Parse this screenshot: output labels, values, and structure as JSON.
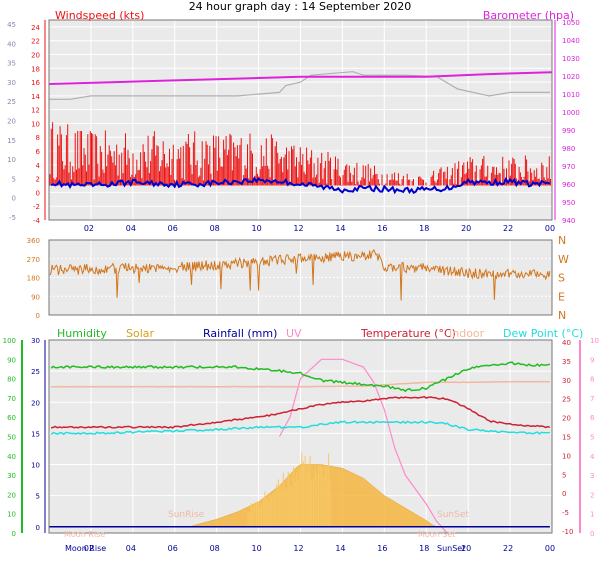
{
  "title": "24 hour graph day : 14 September 2020",
  "colors": {
    "wind_gust": "#ee1111",
    "wind_avg": "#0000cc",
    "barometer": "#dd22dd",
    "bar_gray": "#b0b0b0",
    "direction": "#d2761e",
    "humidity": "#22bb22",
    "solar": "#f5b640",
    "solar_legend": "#d4a017",
    "rainfall": "#000099",
    "uv": "#ff88cc",
    "temperature": "#cc2233",
    "indoor": "#f2b8a0",
    "dewpoint": "#22dddd",
    "plot_bg": "#eaeaea"
  },
  "chart_data": [
    {
      "type": "line",
      "id": "wind-barometer",
      "left_axis_label": "Windspeed (kts)",
      "right_axis_label": "Barometer (hpa)",
      "left_ticks": [
        "24",
        "22",
        "20",
        "18",
        "16",
        "14",
        "12",
        "10",
        "8",
        "6",
        "4",
        "2",
        "0",
        "-2",
        "-4"
      ],
      "outer_left_ticks": [
        "45",
        "40",
        "35",
        "30",
        "25",
        "20",
        "15",
        "10",
        "5",
        "0",
        "-5"
      ],
      "right_ticks": [
        "1050",
        "1040",
        "1030",
        "1020",
        "1010",
        "1000",
        "990",
        "980",
        "970",
        "960",
        "950",
        "940"
      ],
      "x_ticks": [
        "02",
        "04",
        "06",
        "08",
        "10",
        "12",
        "14",
        "16",
        "18",
        "20",
        "22",
        "00"
      ],
      "ylim_left": [
        -4,
        25
      ],
      "ylim_right": [
        940,
        1051
      ],
      "barometer_hpa": {
        "x": [
          0,
          3,
          6,
          9,
          12,
          15,
          18,
          21,
          24
        ],
        "y": [
          1015.5,
          1016.5,
          1017.5,
          1018.5,
          1019.5,
          1019.5,
          1019.5,
          1021,
          1022
        ]
      },
      "gray_line": {
        "x": [
          0,
          1,
          2,
          6,
          9,
          11,
          11.3,
          12,
          12.5,
          14.5,
          15,
          17,
          18.5,
          19.5,
          21,
          22,
          23.9
        ],
        "y": [
          13.5,
          13.5,
          14,
          14,
          14,
          14.5,
          15.5,
          16,
          17,
          17.5,
          17,
          17,
          16.8,
          15,
          14,
          14.5,
          14.5
        ]
      },
      "wind_gust_kts": {
        "x": [
          0,
          2,
          4,
          6,
          8,
          10,
          12,
          14,
          16,
          18,
          20,
          22,
          23.9
        ],
        "y": [
          6,
          5,
          5,
          5,
          5,
          5,
          4,
          3,
          2,
          1.5,
          3,
          3,
          3
        ]
      },
      "wind_avg_kts": {
        "x": [
          0,
          1,
          2,
          3,
          4,
          5,
          6,
          7,
          8,
          9,
          10,
          11,
          12,
          13,
          14,
          15,
          16,
          17,
          18,
          19,
          20,
          21,
          22,
          23,
          23.9
        ],
        "y": [
          1.5,
          1,
          1,
          1.2,
          1.5,
          1.3,
          1.2,
          1.2,
          1.4,
          1.6,
          1.8,
          1.6,
          1.2,
          0.8,
          0.4,
          0.6,
          0.5,
          0.3,
          0.4,
          0.6,
          1.6,
          1.4,
          1.6,
          1.2,
          1.4
        ]
      }
    },
    {
      "type": "scatter",
      "id": "wind-direction",
      "left_ticks": [
        "360",
        "270",
        "180",
        "90",
        "0"
      ],
      "right_ticks": [
        "N",
        "W",
        "S",
        "E",
        "N"
      ],
      "ylim": [
        0,
        360
      ],
      "direction_deg": {
        "x": [
          0,
          2,
          4,
          6,
          8,
          10,
          12,
          14,
          15.6,
          16,
          18,
          20,
          22,
          23.9
        ],
        "y": [
          215,
          220,
          225,
          230,
          240,
          255,
          270,
          280,
          290,
          230,
          225,
          200,
          195,
          195
        ]
      }
    },
    {
      "type": "line",
      "id": "temperature-solar",
      "legend": [
        "Humidity",
        "Solar",
        "Rainfall (mm)",
        "UV",
        "Temperature (°C)",
        "Indoor",
        "Dew Point (°C)"
      ],
      "humidity_ticks": [
        "100",
        "90",
        "80",
        "70",
        "60",
        "50",
        "40",
        "30",
        "20",
        "10",
        "0"
      ],
      "temperature_ticks": [
        "30",
        "25",
        "20",
        "15",
        "10",
        "5",
        "0"
      ],
      "right_temp_ticks": [
        "40",
        "35",
        "30",
        "25",
        "20",
        "15",
        "10",
        "5",
        "0",
        "-5",
        "-10"
      ],
      "uv_ticks": [
        "10",
        "9",
        "8",
        "7",
        "6",
        "5",
        "4",
        "3",
        "2",
        "1",
        "0"
      ],
      "x_ticks": [
        "02",
        "04",
        "06",
        "08",
        "10",
        "12",
        "14",
        "16",
        "18",
        "20",
        "22",
        "00"
      ],
      "annotations": [
        "Moon Rise",
        "Moon Rise",
        "SunRise",
        "SunSet",
        "SunSet",
        "Moon Set"
      ],
      "ylim_temp": [
        -1,
        30
      ],
      "humidity_pct": {
        "x": [
          0,
          1,
          2,
          3,
          4,
          5,
          6,
          7,
          8,
          9,
          10,
          11,
          12,
          13,
          14,
          15,
          16,
          17,
          18,
          19,
          20,
          21,
          22,
          23,
          23.9
        ],
        "y": [
          86,
          86,
          86,
          86,
          86,
          86,
          86,
          86,
          86,
          86,
          85,
          84,
          83,
          79,
          78,
          77,
          76,
          74,
          75,
          80,
          85,
          87,
          88,
          87,
          87
        ]
      },
      "temperature_c": {
        "x": [
          0,
          1,
          2,
          3,
          4,
          5,
          6,
          7,
          8,
          9,
          10,
          11,
          12,
          13,
          14,
          15,
          16,
          17,
          18,
          19,
          20,
          21,
          22,
          23,
          23.9
        ],
        "y": [
          16,
          16,
          16,
          16,
          16,
          16,
          16,
          16.4,
          16.8,
          17.2,
          17.6,
          18.2,
          19,
          19.6,
          20,
          20.2,
          20.6,
          20.8,
          20.8,
          20.5,
          19,
          17,
          16.5,
          16.2,
          16
        ]
      },
      "indoor_c": {
        "x": [
          0,
          6,
          12,
          15,
          16,
          17,
          18,
          19,
          20,
          22,
          23.9
        ],
        "y": [
          22.5,
          22.5,
          22.5,
          22.6,
          22.8,
          23,
          23.2,
          23.2,
          23.2,
          23.3,
          23.3
        ]
      },
      "dewpoint_c": {
        "x": [
          0,
          2,
          4,
          6,
          8,
          10,
          12,
          13,
          14,
          16,
          18,
          19,
          20,
          21,
          22,
          23.9
        ],
        "y": [
          15,
          15,
          15.2,
          15.4,
          15.6,
          16,
          16,
          16.4,
          16.8,
          16.8,
          16.8,
          16.5,
          15.6,
          15.4,
          15.2,
          15
        ]
      },
      "solar_c_scale": {
        "x": [
          6.7,
          7,
          8,
          9,
          10,
          11,
          11.8,
          12,
          13,
          14,
          15,
          15.5,
          16,
          17,
          18,
          18.3,
          18.5
        ],
        "y": [
          0,
          0.3,
          1.2,
          2.4,
          4,
          6.6,
          9.5,
          10,
          10,
          9.4,
          7.8,
          6.4,
          5,
          3,
          1,
          0.3,
          0
        ]
      },
      "uv_index": {
        "x": [
          11,
          11.5,
          12,
          13,
          14,
          15,
          15.5,
          16,
          16.5,
          17,
          18,
          18.5,
          19
        ],
        "y": [
          5,
          6,
          8,
          9,
          9,
          8.6,
          7.8,
          6.4,
          4.4,
          3,
          1.5,
          0.6,
          0
        ]
      },
      "rainfall_mm": {
        "x": [
          0,
          23.9
        ],
        "y": [
          0,
          0
        ]
      }
    }
  ]
}
